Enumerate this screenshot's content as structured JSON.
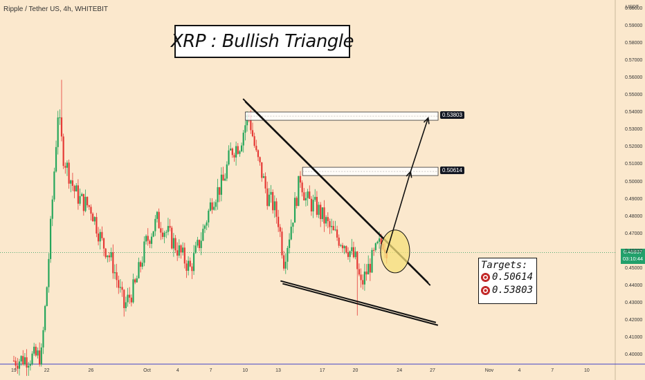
{
  "header": {
    "symbol": "Ripple / Tether US, 4h, WHITEBIT"
  },
  "annotations": {
    "title": "XRP : Bullish Triangle",
    "targets_title": "Targets:",
    "targets": [
      "0.50614",
      "0.53803"
    ],
    "target_icon": "target-icon"
  },
  "price_axis": {
    "currency": "USDT",
    "current_price": "0.45937",
    "countdown": "03:10:44"
  },
  "colors": {
    "background": "#fbe8cd",
    "bull_candle": "#26a65b",
    "bear_candle": "#e53935",
    "current_price": "#22a06b",
    "highlight": "#f5e07a",
    "axis_line": "#3f3fc8"
  },
  "chart_data": {
    "type": "candlestick",
    "ylim": [
      0.395,
      0.605
    ],
    "y_ticks": [
      "0.60000",
      "0.59000",
      "0.58000",
      "0.57000",
      "0.56000",
      "0.55000",
      "0.54000",
      "0.53000",
      "0.52000",
      "0.51000",
      "0.50000",
      "0.49000",
      "0.48000",
      "0.47000",
      "0.46000",
      "0.45000",
      "0.44000",
      "0.43000",
      "0.42000",
      "0.41000",
      "0.40000"
    ],
    "x_ticks": [
      {
        "label": "19",
        "day": 0
      },
      {
        "label": "22",
        "day": 3
      },
      {
        "label": "26",
        "day": 7
      },
      {
        "label": "Oct",
        "day": 12
      },
      {
        "label": "4",
        "day": 15
      },
      {
        "label": "7",
        "day": 18
      },
      {
        "label": "10",
        "day": 21
      },
      {
        "label": "13",
        "day": 24
      },
      {
        "label": "17",
        "day": 28
      },
      {
        "label": "20",
        "day": 31
      },
      {
        "label": "24",
        "day": 35
      },
      {
        "label": "27",
        "day": 38
      },
      {
        "label": "Nov",
        "day": 43
      },
      {
        "label": "4",
        "day": 46
      },
      {
        "label": "7",
        "day": 49
      },
      {
        "label": "10",
        "day": 52
      }
    ],
    "close_path": [
      [
        0,
        0.397
      ],
      [
        2.5,
        0.4
      ],
      [
        3.0,
        0.44
      ],
      [
        3.5,
        0.49
      ],
      [
        4.0,
        0.54
      ],
      [
        4.5,
        0.515
      ],
      [
        5.0,
        0.505
      ],
      [
        5.5,
        0.495
      ],
      [
        6.0,
        0.49
      ],
      [
        7.0,
        0.485
      ],
      [
        8.0,
        0.465
      ],
      [
        8.5,
        0.46
      ],
      [
        9.0,
        0.452
      ],
      [
        9.5,
        0.44
      ],
      [
        10.0,
        0.428
      ],
      [
        11.0,
        0.44
      ],
      [
        12.0,
        0.465
      ],
      [
        13.0,
        0.478
      ],
      [
        14.0,
        0.47
      ],
      [
        15.0,
        0.46
      ],
      [
        16.0,
        0.45
      ],
      [
        17.0,
        0.468
      ],
      [
        18.0,
        0.49
      ],
      [
        19.0,
        0.5
      ],
      [
        19.7,
        0.518
      ],
      [
        20.5,
        0.522
      ],
      [
        21.3,
        0.54
      ],
      [
        22.0,
        0.515
      ],
      [
        22.5,
        0.505
      ],
      [
        23.0,
        0.492
      ],
      [
        23.5,
        0.487
      ],
      [
        24.0,
        0.478
      ],
      [
        24.5,
        0.455
      ],
      [
        25.0,
        0.47
      ],
      [
        26.0,
        0.503
      ],
      [
        26.5,
        0.49
      ],
      [
        27.5,
        0.485
      ],
      [
        28.0,
        0.48
      ],
      [
        29.0,
        0.47
      ],
      [
        30.0,
        0.465
      ],
      [
        31.0,
        0.455
      ],
      [
        31.5,
        0.44
      ],
      [
        32.0,
        0.448
      ],
      [
        33.0,
        0.462
      ],
      [
        33.5,
        0.466
      ],
      [
        34.0,
        0.46
      ]
    ],
    "highs_lows": [
      {
        "label": "peak",
        "day": 4.4,
        "value": 0.559
      },
      {
        "label": "low",
        "day": 31.2,
        "value": 0.423
      }
    ],
    "resistance_zones": [
      {
        "value": 0.53803,
        "label": "0.53803"
      },
      {
        "value": 0.50614,
        "label": "0.50614"
      }
    ],
    "triangle_upper": [
      [
        20.8,
        0.548
      ],
      [
        37.6,
        0.442
      ]
    ],
    "triangle_lower": [
      [
        24.2,
        0.443
      ],
      [
        38.3,
        0.419
      ]
    ],
    "breakout_arrow": [
      [
        33.8,
        0.459
      ],
      [
        36.0,
        0.506
      ],
      [
        37.6,
        0.537
      ]
    ],
    "breakout_circle": {
      "day": 34.6,
      "value": 0.46
    }
  }
}
